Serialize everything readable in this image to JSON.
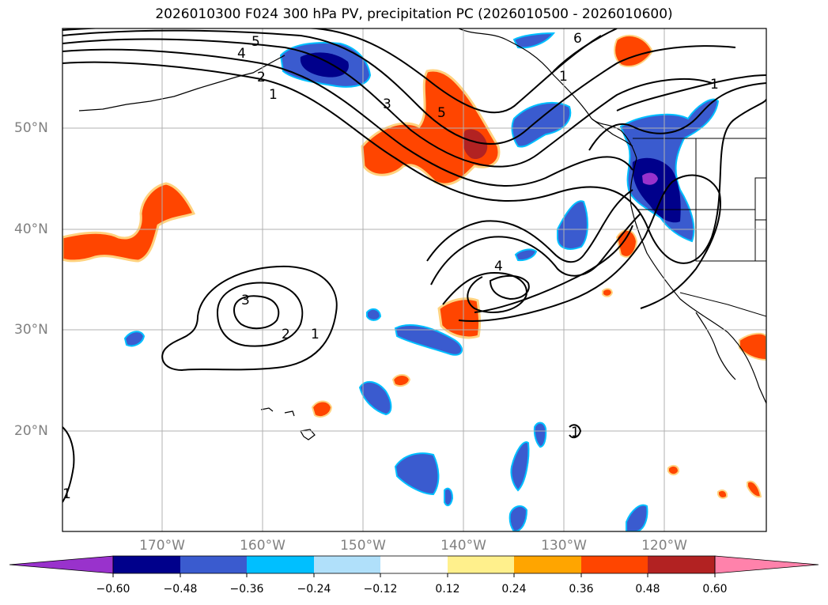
{
  "title": "2026010300 F024 300 hPa PV, precipitation PC (2026010500 - 2026010600)",
  "axes": {
    "lon_labels": [
      "170°W",
      "160°W",
      "150°W",
      "140°W",
      "130°W",
      "120°W"
    ],
    "lat_labels": [
      "50°N",
      "40°N",
      "30°N",
      "20°N"
    ]
  },
  "contour_labels": [
    "5",
    "4",
    "2",
    "1",
    "3",
    "5",
    "6",
    "1",
    "1",
    "3",
    "2",
    "1",
    "4",
    "1",
    "1"
  ],
  "colorbar": {
    "ticks": [
      "−0.60",
      "−0.48",
      "−0.36",
      "−0.24",
      "−0.12",
      "0.12",
      "0.24",
      "0.36",
      "0.48",
      "0.60"
    ],
    "colors": [
      "#9932cc",
      "#00008b",
      "#3a5bcf",
      "#00bfff",
      "#b0e0fa",
      "#ffffff",
      "#fff08c",
      "#ffa500",
      "#ff4500",
      "#b22222",
      "#ff82ab"
    ]
  },
  "colors": {
    "neg_strong": "#00008b",
    "neg_mid": "#3a5bcf",
    "neg_light": "#00bfff",
    "neg_extreme": "#9932cc",
    "pos_mid": "#ff4500",
    "pos_strong": "#b22222",
    "pos_light": "#ffa500"
  }
}
